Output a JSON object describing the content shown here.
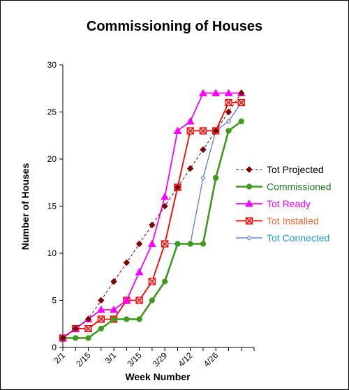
{
  "chart_data": {
    "type": "line",
    "title": "Commissioning of Houses",
    "xlabel": "Week Number",
    "ylabel": "Number of Houses",
    "ylim": [
      0,
      30
    ],
    "yticks": [
      0,
      5,
      10,
      15,
      20,
      25,
      30
    ],
    "x_points": 15,
    "xtick_labels": [
      "2/1",
      "2/15",
      "3/1",
      "3/15",
      "3/29",
      "4/12",
      "4/26"
    ],
    "xtick_every": 2,
    "grid": false,
    "legend_placement": "right",
    "series": [
      {
        "name": "Tot Projected",
        "color": "#7f0000",
        "marker": "diamond",
        "dash": "dashed",
        "values": [
          1,
          2,
          3,
          5,
          7,
          9,
          11,
          13,
          15,
          17,
          19,
          21,
          23,
          25,
          27
        ]
      },
      {
        "name": "Commissioned",
        "color": "#3d9a1c",
        "marker": "circle",
        "dash": "solid",
        "values": [
          1,
          1,
          1,
          2,
          3,
          3,
          3,
          5,
          7,
          11,
          11,
          11,
          18,
          23,
          24
        ]
      },
      {
        "name": "Tot Ready",
        "color": "#ff00ff",
        "marker": "triangle",
        "dash": "solid",
        "values": [
          1,
          2,
          3,
          4,
          4,
          5,
          8,
          11,
          16,
          23,
          24,
          27,
          27,
          27,
          27
        ]
      },
      {
        "name": "Tot Installed",
        "color": "#ff0000",
        "marker": "square-x",
        "dash": "solid",
        "values": [
          1,
          2,
          2,
          3,
          3,
          5,
          5,
          7,
          11,
          17,
          23,
          23,
          23,
          26,
          26
        ]
      },
      {
        "name": "Tot Connected",
        "color": "#4f6fe0",
        "marker": "small-diamond",
        "dash": "solid",
        "values": [
          1,
          2,
          2,
          3,
          3,
          5,
          5,
          7,
          11,
          11,
          11,
          18,
          23,
          24,
          26
        ]
      }
    ],
    "legend_text_colors": {
      "Tot Projected": "#000000",
      "Commissioned": "#1f7a1f",
      "Tot Ready": "#ff00ff",
      "Tot Installed": "#ff6633",
      "Tot Connected": "#1e9ad6"
    }
  }
}
